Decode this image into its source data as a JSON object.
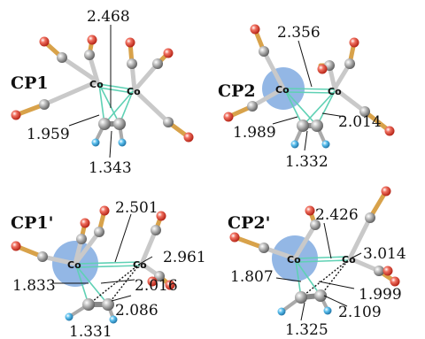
{
  "panels": [
    {
      "id": "CP1",
      "label": "CP1",
      "metal_labels": [
        "Co",
        "Co"
      ],
      "distances": {
        "co_co": "2.468",
        "co_c": "1.959",
        "c_c": "1.343"
      }
    },
    {
      "id": "CP2",
      "label": "CP2",
      "metal_labels": [
        "Co",
        "Co"
      ],
      "distances": {
        "co_co": "2.356",
        "co_c_left": "1.989",
        "co_c_right": "2.014",
        "c_c": "1.332"
      }
    },
    {
      "id": "CP1p",
      "label": "CP1'",
      "metal_labels": [
        "Co",
        "Co"
      ],
      "distances": {
        "co_co": "2.501",
        "co_c_far": "2.961",
        "co_c_left": "1.833",
        "c_c": "1.331",
        "c_c_2": "2.016",
        "c_c_3": "2.086"
      }
    },
    {
      "id": "CP2p",
      "label": "CP2'",
      "metal_labels": [
        "Co",
        "Co"
      ],
      "distances": {
        "co_co": "2.426",
        "co_c_far": "3.014",
        "co_c_left": "1.807",
        "c_c": "1.325",
        "c_c_2": "1.999",
        "c_c_3": "2.109"
      }
    }
  ],
  "colors": {
    "oxygen": "#d63a2a",
    "carbon": "#8a8a8a",
    "hydrogen": "#2a9ad6",
    "cobalt": "#4a7fb0",
    "highlight": "#6f9fdc",
    "co_bond": "#5fd1b4"
  }
}
